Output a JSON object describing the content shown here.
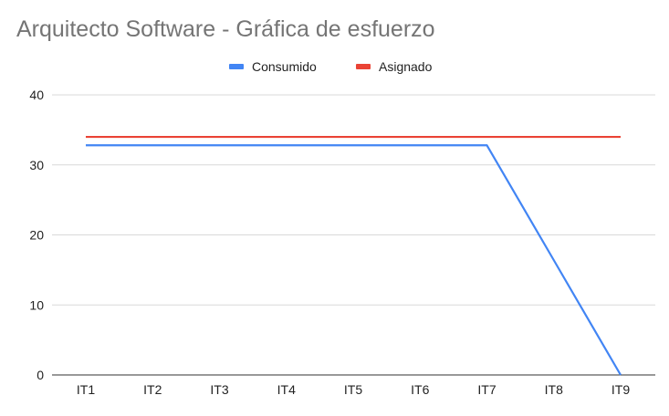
{
  "chart_data": {
    "type": "line",
    "title": "Arquitecto Software - Gráfica de esfuerzo",
    "categories": [
      "IT1",
      "IT2",
      "IT3",
      "IT4",
      "IT5",
      "IT6",
      "IT7",
      "IT8",
      "IT9"
    ],
    "series": [
      {
        "name": "Consumido",
        "color": "#4285f4",
        "values": [
          32.8,
          32.8,
          32.8,
          32.8,
          32.8,
          32.8,
          32.8,
          16.4,
          0
        ]
      },
      {
        "name": "Asignado",
        "color": "#ea4335",
        "values": [
          34,
          34,
          34,
          34,
          34,
          34,
          34,
          34,
          34
        ]
      }
    ],
    "xlabel": "",
    "ylabel": "",
    "ylim": [
      0,
      40
    ],
    "yticks": [
      "0",
      "10",
      "20",
      "30",
      "40"
    ],
    "grid": true,
    "legend_position": "top-center"
  }
}
